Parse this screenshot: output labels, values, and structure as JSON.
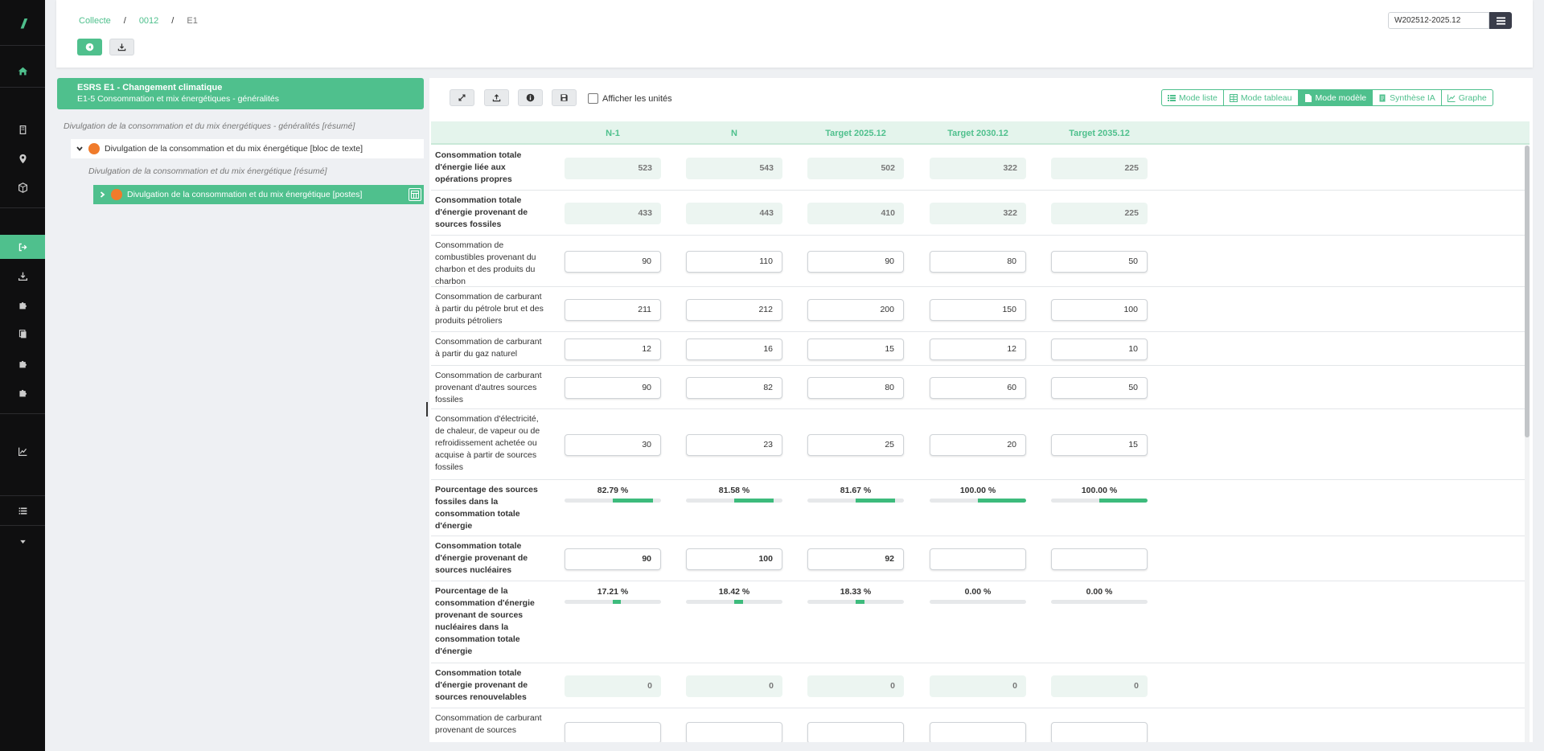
{
  "breadcrumb": {
    "root": "Collecte",
    "code": "0012",
    "current": "E1"
  },
  "period": {
    "value": "W202512-2025.12"
  },
  "tree": {
    "header_title": "ESRS E1 - Changement climatique",
    "header_subtitle": "E1-5 Consommation et mix énergétiques - généralités",
    "summary_top": "Divulgation de la consommation et du mix énergétiques - généralités [résumé]",
    "node_text_block": "Divulgation de la consommation et du mix énergétique [bloc de texte]",
    "summary_inner": "Divulgation de la consommation et du mix énergétique [résumé]",
    "node_posts": "Divulgation de la consommation et du mix énergétique [postes]"
  },
  "toolbar": {
    "show_units": "Afficher les unités"
  },
  "modes": [
    {
      "label": "Mode liste",
      "icon": "list-icon"
    },
    {
      "label": "Mode tableau",
      "icon": "table-icon"
    },
    {
      "label": "Mode modèle",
      "icon": "file-icon",
      "active": true
    },
    {
      "label": "Synthèse IA",
      "icon": "document-icon"
    },
    {
      "label": "Graphe",
      "icon": "line-chart-icon"
    }
  ],
  "columns": [
    "N-1",
    "N",
    "Target 2025.12",
    "Target 2030.12",
    "Target 2035.12"
  ],
  "rows": [
    {
      "label": "Consommation totale d'énergie liée aux opérations propres",
      "bold": true,
      "kind": "calc",
      "values": [
        "523",
        "543",
        "502",
        "322",
        "225"
      ]
    },
    {
      "label": "Consommation totale d'énergie provenant de sources fossiles",
      "bold": true,
      "kind": "calc",
      "values": [
        "433",
        "443",
        "410",
        "322",
        "225"
      ]
    },
    {
      "label": "Consommation de combustibles provenant du charbon et des produits du charbon",
      "bold": false,
      "kind": "input",
      "values": [
        "90",
        "110",
        "90",
        "80",
        "50"
      ]
    },
    {
      "label": "Consommation de carburant à partir du pétrole brut et des produits pétroliers",
      "bold": false,
      "kind": "input",
      "values": [
        "211",
        "212",
        "200",
        "150",
        "100"
      ]
    },
    {
      "label": "Consommation de carburant à partir du gaz naturel",
      "bold": false,
      "kind": "input",
      "values": [
        "12",
        "16",
        "15",
        "12",
        "10"
      ]
    },
    {
      "label": "Consommation de carburant provenant d'autres sources fossiles",
      "bold": false,
      "kind": "input",
      "values": [
        "90",
        "82",
        "80",
        "60",
        "50"
      ]
    },
    {
      "label": "Consommation d'électricité, de chaleur, de vapeur ou de refroidissement achetée ou acquise à partir de sources fossiles",
      "bold": false,
      "kind": "input",
      "values": [
        "30",
        "23",
        "25",
        "20",
        "15"
      ]
    },
    {
      "label": "Pourcentage des sources fossiles dans la consommation totale d'énergie",
      "bold": true,
      "kind": "pct",
      "values": [
        "82.79 %",
        "81.58 %",
        "81.67 %",
        "100.00 %",
        "100.00 %"
      ],
      "fractions": [
        0.8279,
        0.8158,
        0.8167,
        1.0,
        1.0
      ]
    },
    {
      "label": "Consommation totale d'énergie provenant de sources nucléaires",
      "bold": true,
      "kind": "input-bold",
      "values": [
        "90",
        "100",
        "92",
        "",
        ""
      ]
    },
    {
      "label": "Pourcentage de la consommation d'énergie provenant de sources nucléaires dans la consommation totale d'énergie",
      "bold": true,
      "kind": "pct",
      "values": [
        "17.21 %",
        "18.42 %",
        "18.33 %",
        "0.00 %",
        "0.00 %"
      ],
      "fractions": [
        0.1721,
        0.1842,
        0.1833,
        0,
        0
      ]
    },
    {
      "label": "Consommation totale d'énergie provenant de sources renouvelables",
      "bold": true,
      "kind": "calc",
      "values": [
        "0",
        "0",
        "0",
        "0",
        "0"
      ]
    },
    {
      "label": "Consommation de carburant provenant de sources",
      "bold": false,
      "kind": "input",
      "values": [
        "",
        "",
        "",
        "",
        ""
      ]
    }
  ]
}
